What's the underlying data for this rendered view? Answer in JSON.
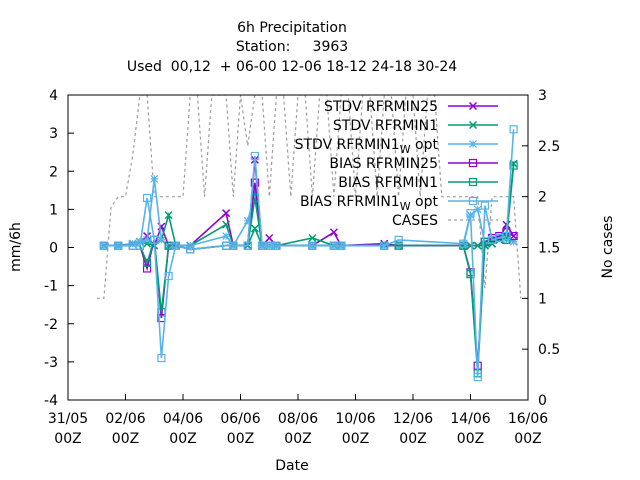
{
  "title": {
    "line1": "6h Precipitation",
    "line2": "Station:     3963",
    "line3": "Used  00,12  + 06-00 12-06 18-12 24-18 30-24"
  },
  "chart_data": {
    "type": "line",
    "xlabel": "Date",
    "ylabel": "mm/6h",
    "y2label": "No cases",
    "xticks": [
      {
        "t": 0,
        "top": "31/05",
        "bottom": "00Z"
      },
      {
        "t": 2,
        "top": "02/06",
        "bottom": "00Z"
      },
      {
        "t": 4,
        "top": "04/06",
        "bottom": "00Z"
      },
      {
        "t": 6,
        "top": "06/06",
        "bottom": "00Z"
      },
      {
        "t": 8,
        "top": "08/06",
        "bottom": "00Z"
      },
      {
        "t": 10,
        "top": "10/06",
        "bottom": "00Z"
      },
      {
        "t": 12,
        "top": "12/06",
        "bottom": "00Z"
      },
      {
        "t": 14,
        "top": "14/06",
        "bottom": "00Z"
      },
      {
        "t": 16,
        "top": "16/06",
        "bottom": "00Z"
      }
    ],
    "xlim": [
      0,
      16
    ],
    "ylim": [
      -4,
      4
    ],
    "yticks": [
      -4,
      -3,
      -2,
      -1,
      0,
      1,
      2,
      3,
      4
    ],
    "y2lim": [
      0,
      3
    ],
    "y2ticks": [
      "0",
      "0.5",
      "1",
      "1.5",
      "2",
      "2.5",
      "3"
    ],
    "grid": false,
    "legend_position": "top-right",
    "series": [
      {
        "name": "STDV RFRMIN25",
        "color": "#9400d3",
        "marker": "x",
        "axis": "y1",
        "points": [
          [
            1.25,
            0.05
          ],
          [
            1.75,
            0.05
          ],
          [
            2.25,
            0.1
          ],
          [
            2.5,
            0.15
          ],
          [
            2.75,
            0.3
          ],
          [
            3.0,
            0.05
          ],
          [
            3.25,
            0.55
          ],
          [
            3.5,
            0.05
          ],
          [
            3.75,
            0.05
          ],
          [
            4.25,
            0.05
          ],
          [
            5.5,
            0.9
          ],
          [
            5.75,
            0.05
          ],
          [
            6.25,
            0.05
          ],
          [
            6.5,
            2.3
          ],
          [
            6.75,
            0.05
          ],
          [
            7.0,
            0.25
          ],
          [
            7.25,
            0.05
          ],
          [
            8.5,
            0.05
          ],
          [
            9.25,
            0.4
          ],
          [
            9.5,
            0.05
          ],
          [
            11.0,
            0.1
          ],
          [
            11.5,
            0.05
          ],
          [
            13.75,
            0.05
          ],
          [
            14.0,
            0.05
          ],
          [
            14.25,
            0.05
          ],
          [
            14.5,
            0.05
          ],
          [
            14.75,
            0.1
          ],
          [
            15.0,
            0.2
          ],
          [
            15.25,
            0.6
          ],
          [
            15.5,
            0.3
          ]
        ]
      },
      {
        "name": "STDV RFRMIN1",
        "color": "#009e73",
        "marker": "x",
        "axis": "y1",
        "points": [
          [
            1.25,
            0.05
          ],
          [
            1.75,
            0.05
          ],
          [
            2.25,
            0.1
          ],
          [
            2.5,
            0.15
          ],
          [
            2.75,
            0.1
          ],
          [
            3.0,
            0.05
          ],
          [
            3.25,
            0.2
          ],
          [
            3.5,
            0.85
          ],
          [
            3.75,
            0.05
          ],
          [
            4.25,
            0.05
          ],
          [
            5.5,
            0.6
          ],
          [
            5.75,
            0.05
          ],
          [
            6.25,
            0.05
          ],
          [
            6.5,
            0.5
          ],
          [
            6.75,
            0.05
          ],
          [
            7.0,
            0.05
          ],
          [
            7.25,
            0.05
          ],
          [
            8.5,
            0.25
          ],
          [
            9.25,
            0.05
          ],
          [
            9.5,
            0.05
          ],
          [
            11.0,
            0.05
          ],
          [
            11.5,
            0.05
          ],
          [
            13.75,
            0.05
          ],
          [
            14.0,
            0.05
          ],
          [
            14.25,
            0.05
          ],
          [
            14.5,
            0.05
          ],
          [
            14.75,
            0.1
          ],
          [
            15.0,
            0.2
          ],
          [
            15.25,
            0.3
          ],
          [
            15.5,
            2.2
          ]
        ]
      },
      {
        "name": "STDV RFRMIN1 W opt",
        "label_main": "STDV RFRMIN1",
        "label_sub": "W",
        "label_after": " opt",
        "color": "#56b4e9",
        "marker": "star",
        "axis": "y1",
        "points": [
          [
            1.25,
            0.05
          ],
          [
            1.75,
            0.05
          ],
          [
            2.25,
            0.1
          ],
          [
            2.5,
            0.15
          ],
          [
            2.75,
            0.2
          ],
          [
            3.0,
            1.8
          ],
          [
            3.25,
            0.2
          ],
          [
            3.5,
            0.05
          ],
          [
            3.75,
            0.05
          ],
          [
            4.25,
            0.05
          ],
          [
            5.5,
            0.3
          ],
          [
            5.75,
            0.05
          ],
          [
            6.25,
            0.7
          ],
          [
            6.5,
            1.4
          ],
          [
            6.75,
            0.05
          ],
          [
            7.0,
            0.05
          ],
          [
            7.25,
            0.05
          ],
          [
            8.5,
            0.05
          ],
          [
            9.25,
            0.05
          ],
          [
            9.5,
            0.05
          ],
          [
            11.0,
            0.05
          ],
          [
            11.5,
            0.05
          ],
          [
            13.75,
            0.05
          ],
          [
            14.0,
            0.85
          ],
          [
            14.25,
            1.0
          ],
          [
            14.5,
            0.1
          ],
          [
            14.75,
            0.2
          ],
          [
            15.0,
            0.25
          ],
          [
            15.25,
            0.2
          ],
          [
            15.5,
            0.15
          ]
        ]
      },
      {
        "name": "BIAS RFRMIN25",
        "color": "#9400d3",
        "marker": "square",
        "axis": "y1",
        "points": [
          [
            1.25,
            0.05
          ],
          [
            1.75,
            0.05
          ],
          [
            2.25,
            0.05
          ],
          [
            2.5,
            0.05
          ],
          [
            2.75,
            -0.55
          ],
          [
            3.0,
            0.2
          ],
          [
            3.25,
            -1.85
          ],
          [
            3.5,
            0.05
          ],
          [
            3.75,
            0.05
          ],
          [
            4.25,
            -0.05
          ],
          [
            5.5,
            0.05
          ],
          [
            5.75,
            0.05
          ],
          [
            6.25,
            0.05
          ],
          [
            6.5,
            1.7
          ],
          [
            6.75,
            0.05
          ],
          [
            7.0,
            0.05
          ],
          [
            7.25,
            0.05
          ],
          [
            8.5,
            0.05
          ],
          [
            9.25,
            0.05
          ],
          [
            9.5,
            0.05
          ],
          [
            11.0,
            0.05
          ],
          [
            11.5,
            0.05
          ],
          [
            13.75,
            0.05
          ],
          [
            14.0,
            -0.65
          ],
          [
            14.25,
            -3.1
          ],
          [
            14.5,
            0.15
          ],
          [
            14.75,
            0.25
          ],
          [
            15.0,
            0.3
          ],
          [
            15.25,
            0.4
          ],
          [
            15.5,
            0.3
          ]
        ]
      },
      {
        "name": "BIAS RFRMIN1",
        "color": "#009e73",
        "marker": "square",
        "axis": "y1",
        "points": [
          [
            1.25,
            0.05
          ],
          [
            1.75,
            0.05
          ],
          [
            2.25,
            0.05
          ],
          [
            2.5,
            0.05
          ],
          [
            2.75,
            -0.4
          ],
          [
            3.0,
            0.2
          ],
          [
            3.25,
            -1.7
          ],
          [
            3.5,
            0.05
          ],
          [
            3.75,
            0.05
          ],
          [
            4.25,
            -0.05
          ],
          [
            5.5,
            0.05
          ],
          [
            5.75,
            0.05
          ],
          [
            6.25,
            0.05
          ],
          [
            6.5,
            1.3
          ],
          [
            6.75,
            0.05
          ],
          [
            7.0,
            0.05
          ],
          [
            7.25,
            0.05
          ],
          [
            8.5,
            0.05
          ],
          [
            9.25,
            0.05
          ],
          [
            9.5,
            0.05
          ],
          [
            11.0,
            0.05
          ],
          [
            11.5,
            0.05
          ],
          [
            13.75,
            0.05
          ],
          [
            14.0,
            -0.7
          ],
          [
            14.25,
            -3.3
          ],
          [
            14.5,
            0.15
          ],
          [
            14.75,
            0.2
          ],
          [
            15.0,
            0.25
          ],
          [
            15.25,
            0.2
          ],
          [
            15.5,
            2.15
          ]
        ]
      },
      {
        "name": "BIAS RFRMIN1 W opt",
        "label_main": "BIAS RFRMIN1",
        "label_sub": "W",
        "label_after": " opt",
        "color": "#56b4e9",
        "marker": "square",
        "axis": "y1",
        "points": [
          [
            1.25,
            0.05
          ],
          [
            1.75,
            0.05
          ],
          [
            2.25,
            0.05
          ],
          [
            2.5,
            0.05
          ],
          [
            2.75,
            1.3
          ],
          [
            3.0,
            0.2
          ],
          [
            3.25,
            -2.9
          ],
          [
            3.5,
            -0.75
          ],
          [
            3.75,
            0.05
          ],
          [
            4.25,
            -0.05
          ],
          [
            5.5,
            0.05
          ],
          [
            5.75,
            0.05
          ],
          [
            6.25,
            0.05
          ],
          [
            6.5,
            2.4
          ],
          [
            6.75,
            0.05
          ],
          [
            7.0,
            0.05
          ],
          [
            7.25,
            0.05
          ],
          [
            8.5,
            0.05
          ],
          [
            9.25,
            0.05
          ],
          [
            9.5,
            0.05
          ],
          [
            11.0,
            0.05
          ],
          [
            11.5,
            0.2
          ],
          [
            13.75,
            0.1
          ],
          [
            14.0,
            0.9
          ],
          [
            14.25,
            -3.4
          ],
          [
            14.5,
            1.1
          ],
          [
            14.75,
            0.2
          ],
          [
            15.0,
            0.25
          ],
          [
            15.25,
            0.3
          ],
          [
            15.5,
            3.1
          ]
        ]
      },
      {
        "name": "CASES",
        "color": "#9e9e9e",
        "marker": "none",
        "dash": true,
        "axis": "y2",
        "points": [
          [
            1.0,
            1.0
          ],
          [
            1.25,
            1.0
          ],
          [
            1.5,
            1.9
          ],
          [
            1.75,
            2.0
          ],
          [
            2.0,
            2.0
          ],
          [
            2.25,
            2.4
          ],
          [
            2.5,
            3.0
          ],
          [
            2.75,
            3.0
          ],
          [
            3.0,
            2.0
          ],
          [
            3.25,
            2.0
          ],
          [
            3.5,
            2.0
          ],
          [
            3.75,
            2.0
          ],
          [
            4.0,
            2.0
          ],
          [
            4.25,
            3.0
          ],
          [
            4.5,
            3.0
          ],
          [
            4.75,
            2.0
          ],
          [
            5.0,
            3.0
          ],
          [
            5.25,
            3.0
          ],
          [
            5.5,
            3.0
          ],
          [
            5.75,
            2.0
          ],
          [
            6.0,
            3.0
          ],
          [
            6.25,
            2.5
          ],
          [
            6.5,
            3.0
          ],
          [
            6.75,
            3.0
          ],
          [
            7.0,
            2.0
          ],
          [
            7.25,
            3.0
          ],
          [
            7.5,
            3.0
          ],
          [
            7.75,
            2.0
          ],
          [
            8.0,
            3.0
          ],
          [
            8.25,
            3.0
          ],
          [
            8.5,
            2.0
          ],
          [
            8.75,
            3.0
          ],
          [
            9.0,
            3.0
          ],
          [
            9.25,
            2.0
          ],
          [
            9.5,
            3.0
          ],
          [
            9.75,
            3.0
          ],
          [
            10.0,
            2.0
          ],
          [
            10.25,
            3.0
          ],
          [
            10.5,
            3.0
          ],
          [
            10.75,
            2.0
          ],
          [
            11.0,
            3.0
          ],
          [
            11.25,
            3.0
          ],
          [
            11.5,
            2.0
          ],
          [
            11.75,
            3.0
          ],
          [
            12.0,
            3.0
          ],
          [
            12.25,
            2.0
          ],
          [
            12.5,
            3.0
          ],
          [
            12.75,
            3.0
          ],
          [
            13.0,
            2.0
          ],
          [
            13.25,
            2.0
          ],
          [
            13.5,
            2.0
          ],
          [
            13.75,
            2.0
          ],
          [
            14.0,
            2.0
          ],
          [
            14.25,
            2.0
          ],
          [
            14.5,
            1.1
          ],
          [
            14.75,
            2.0
          ],
          [
            15.0,
            2.0
          ],
          [
            15.25,
            2.0
          ],
          [
            15.5,
            2.0
          ],
          [
            15.75,
            1.0
          ]
        ]
      }
    ]
  }
}
